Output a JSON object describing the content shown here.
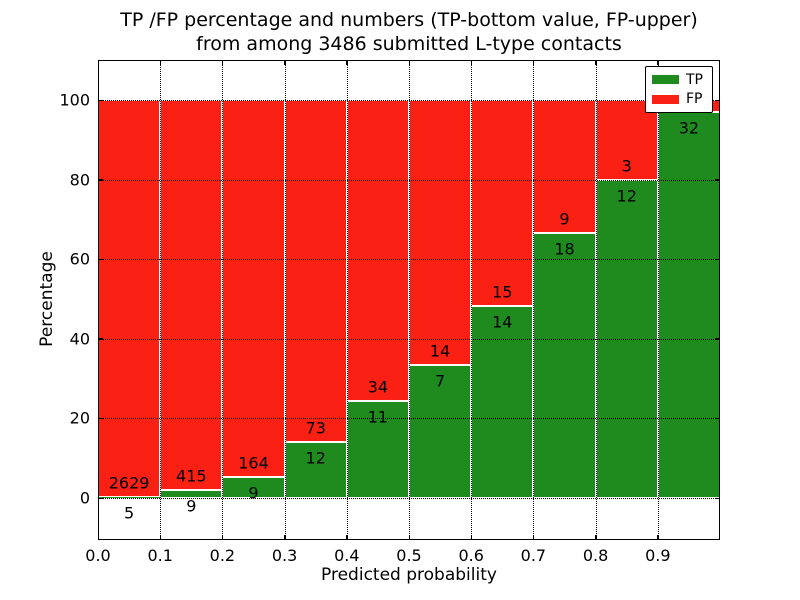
{
  "labels": {
    "title_line1": "TP /FP percentage and numbers (TP-bottom value, FP-upper)",
    "title_line2": "from among 3486 submitted L-type contacts",
    "xlabel": "Predicted probability",
    "ylabel": "Percentage"
  },
  "colors": {
    "tp": "#1f8b1f",
    "fp": "#fb2014",
    "grid": "#000000",
    "background": "#ffffff"
  },
  "chart_data": {
    "type": "bar",
    "stacked": true,
    "normalized": "each bin scaled to 100%",
    "title": "TP /FP percentage and numbers (TP-bottom value, FP-upper) from among 3486 submitted L-type contacts",
    "xlabel": "Predicted probability",
    "ylabel": "Percentage",
    "total_contacts": 3486,
    "grid": "dotted",
    "ylim": [
      -10.5,
      110.5
    ],
    "yticks": [
      0,
      20,
      40,
      60,
      80,
      100
    ],
    "xtick_labels": [
      "0.0",
      "0.1",
      "0.2",
      "0.3",
      "0.4",
      "0.5",
      "0.6",
      "0.7",
      "0.8",
      "0.9"
    ],
    "bins": [
      {
        "range": [
          0.0,
          0.1
        ],
        "tp": 5,
        "fp": 2629
      },
      {
        "range": [
          0.1,
          0.2
        ],
        "tp": 9,
        "fp": 415
      },
      {
        "range": [
          0.2,
          0.3
        ],
        "tp": 9,
        "fp": 164
      },
      {
        "range": [
          0.3,
          0.4
        ],
        "tp": 12,
        "fp": 73
      },
      {
        "range": [
          0.4,
          0.5
        ],
        "tp": 11,
        "fp": 34
      },
      {
        "range": [
          0.5,
          0.6
        ],
        "tp": 7,
        "fp": 14
      },
      {
        "range": [
          0.6,
          0.7
        ],
        "tp": 14,
        "fp": 15
      },
      {
        "range": [
          0.7,
          0.8
        ],
        "tp": 18,
        "fp": 9
      },
      {
        "range": [
          0.8,
          0.9
        ],
        "tp": 12,
        "fp": 3
      },
      {
        "range": [
          0.9,
          1.0
        ],
        "tp": 32,
        "fp": 1,
        "fp_label_note": "hidden behind legend in screenshot"
      }
    ],
    "legend": {
      "position": "upper right",
      "entries": [
        {
          "label": "TP",
          "color": "#1f8b1f"
        },
        {
          "label": "FP",
          "color": "#fb2014"
        }
      ]
    }
  }
}
